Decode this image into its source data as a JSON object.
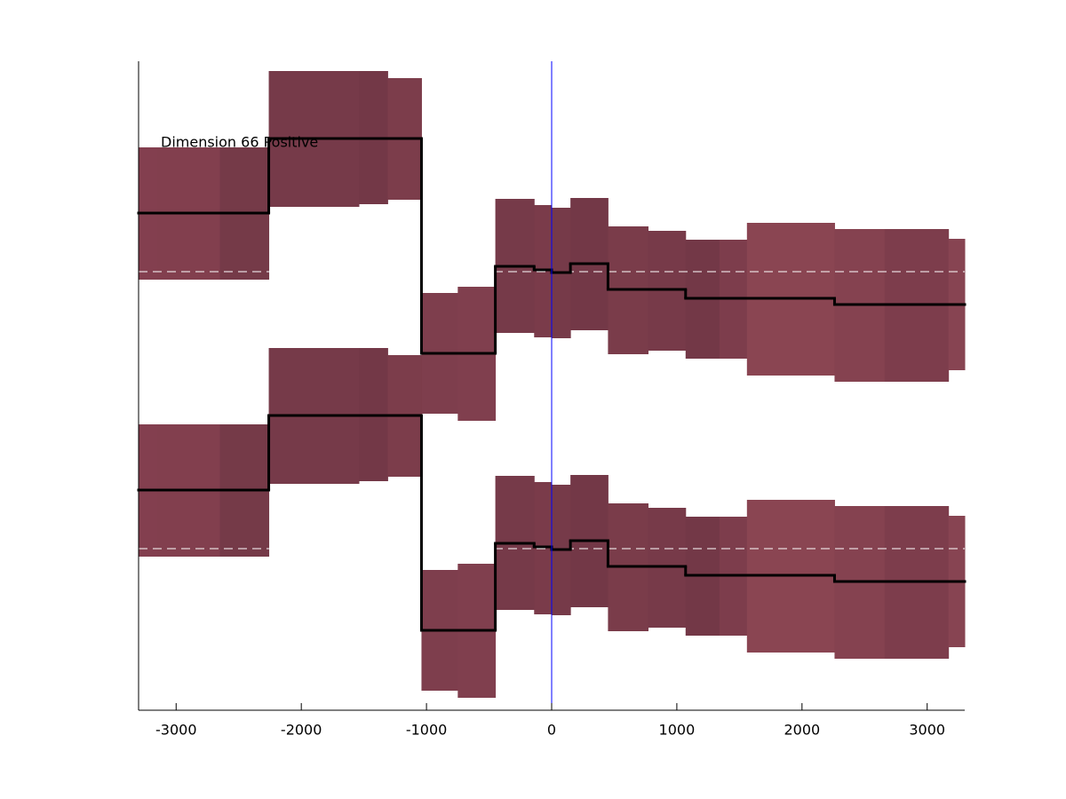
{
  "chart_data": {
    "type": "step-band",
    "annotation": "Dimension 66 Positive",
    "x_edges": [
      -3300,
      -3150,
      -2650,
      -2260,
      -1540,
      -1310,
      -1040,
      -750,
      -450,
      -140,
      0,
      150,
      450,
      770,
      1070,
      1340,
      1560,
      2260,
      2660,
      3170,
      3300
    ],
    "xlim": [
      -3300,
      3300
    ],
    "xticks": [
      -3000,
      -2000,
      -1000,
      0,
      1000,
      2000,
      3000
    ],
    "ylim": [
      0,
      731
    ],
    "vline": 0,
    "vline_color": "#0000ff",
    "line_color": "#000000",
    "baseline_color": "#ffffff",
    "band_colors": [
      "#833f4f",
      "#823f4e",
      "#753a48",
      "#763a49",
      "#733847",
      "#7c3d4b",
      "#7e3e4d",
      "#803f4e",
      "#763a49",
      "#7a3b4a",
      "#763a49",
      "#733847",
      "#7a3c4a",
      "#773a49",
      "#733847",
      "#7d3d4c",
      "#8a4552",
      "#854250",
      "#7d3d4c",
      "#874452"
    ],
    "series": [
      {
        "baseline": 494,
        "values": [
          560,
          560,
          560,
          644,
          644,
          644,
          402,
          402,
          500,
          496,
          493,
          503,
          474,
          474,
          464,
          464,
          464,
          457,
          457,
          457
        ],
        "lower": [
          485,
          485,
          485,
          567,
          570,
          575,
          334,
          326,
          425,
          420,
          419,
          428,
          401,
          405,
          396,
          396,
          377,
          370,
          370,
          383
        ],
        "upper": [
          634,
          634,
          634,
          720,
          720,
          712,
          470,
          477,
          576,
          569,
          566,
          577,
          545,
          540,
          530,
          530,
          549,
          542,
          542,
          531
        ]
      },
      {
        "baseline": 182,
        "values": [
          248,
          248,
          248,
          332,
          332,
          332,
          90,
          90,
          188,
          184,
          181,
          191,
          162,
          162,
          152,
          152,
          152,
          145,
          145,
          145
        ],
        "lower": [
          173,
          173,
          173,
          255,
          258,
          263,
          22,
          14,
          113,
          108,
          107,
          116,
          89,
          93,
          84,
          84,
          65,
          58,
          58,
          71
        ],
        "upper": [
          322,
          322,
          322,
          408,
          408,
          400,
          158,
          165,
          264,
          257,
          254,
          265,
          233,
          228,
          218,
          218,
          237,
          230,
          230,
          219
        ]
      }
    ]
  }
}
